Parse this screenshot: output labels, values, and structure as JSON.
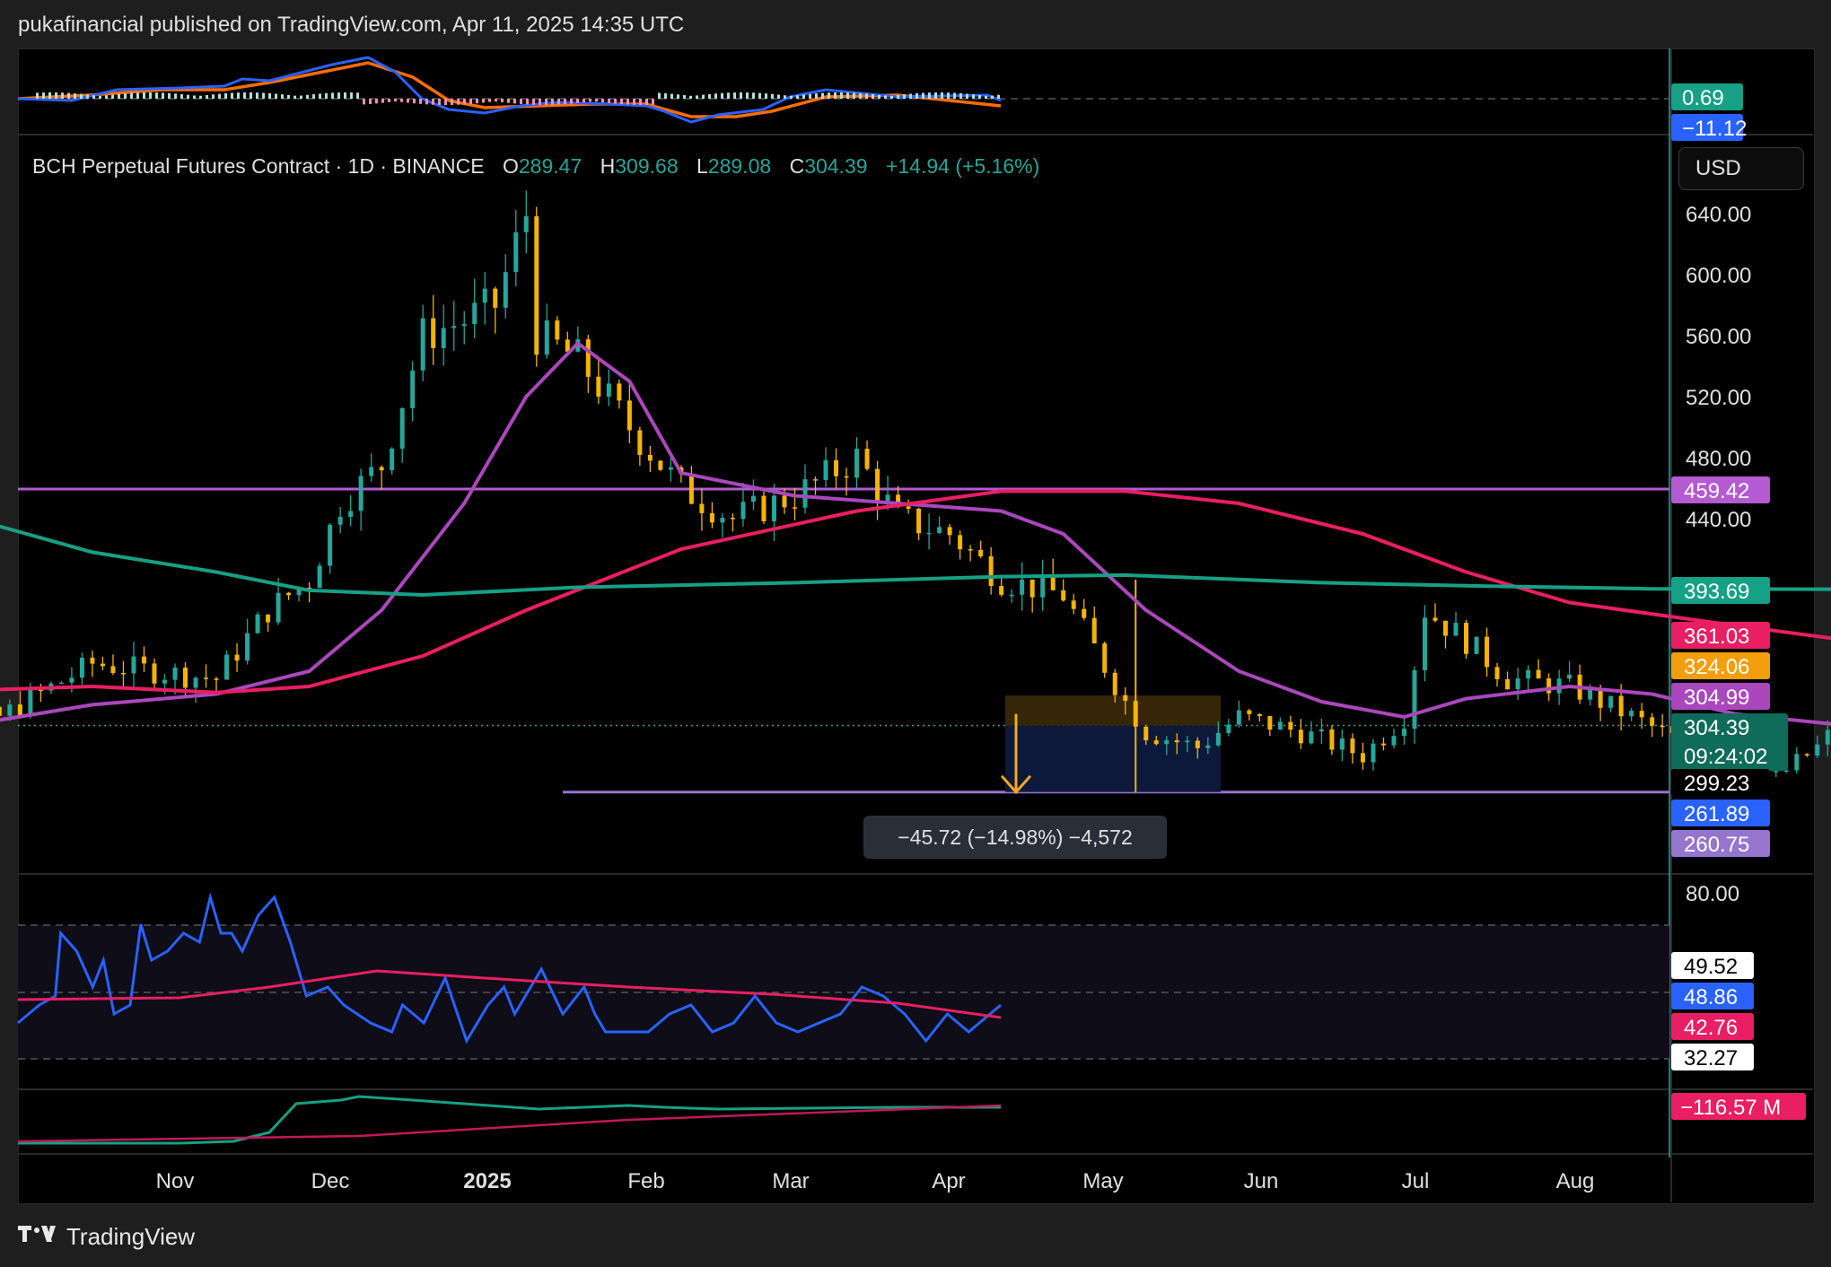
{
  "header": {
    "published": "pukafinancial published on TradingView.com, Apr 11, 2025 14:35 UTC"
  },
  "legend": {
    "symbol": "BCH Perpetual Futures Contract · 1D · BINANCE",
    "o_label": "O",
    "o": "289.47",
    "h_label": "H",
    "h": "309.68",
    "l_label": "L",
    "l": "289.08",
    "c_label": "C",
    "c": "304.39",
    "change": "+14.94 (+5.16%)"
  },
  "currency_button": "USD",
  "footer": {
    "brand": "TradingView",
    "logo": "tv-logo-icon"
  },
  "measure_tooltip": "−45.72 (−14.98%) −4,572",
  "colors": {
    "up": "#26a69a",
    "down": "#f5b400",
    "ma_fast": "#ab47bc",
    "ma_mid": "#e91e63",
    "ma_slow": "#16a085",
    "resistance": "#b45ad3",
    "support": "#9575cd",
    "rsi": "#2962ff",
    "rsi_ma": "#e91e63",
    "macd": "#2962ff",
    "signal": "#ff6d00"
  },
  "price_axis": {
    "ticks": [
      "640.00",
      "600.00",
      "560.00",
      "520.00",
      "480.00",
      "440.00"
    ],
    "badges": [
      {
        "value": "459.42",
        "color": "#b45ad3"
      },
      {
        "value": "393.69",
        "color": "#16a085"
      },
      {
        "value": "361.03",
        "color": "#e91e63"
      },
      {
        "value": "324.06",
        "color": "#f59e0b"
      },
      {
        "value": "304.99",
        "color": "#ab47bc"
      },
      {
        "value": "304.39",
        "color": "#0f6b5a"
      },
      {
        "value": "299.23",
        "color": "#000000"
      },
      {
        "value": "261.89",
        "color": "#2962ff"
      },
      {
        "value": "260.75",
        "color": "#9575cd"
      }
    ],
    "countdown": "09:24:02"
  },
  "macd_axis": {
    "badges": [
      {
        "value": "0.69",
        "color": "#16a085"
      },
      {
        "value": "−11.12",
        "color": "#2962ff"
      }
    ]
  },
  "rsi_axis": {
    "tick": "80.00",
    "badges": [
      {
        "value": "49.52",
        "color": "#ffffff"
      },
      {
        "value": "48.86",
        "color": "#2962ff"
      },
      {
        "value": "42.76",
        "color": "#e91e63"
      },
      {
        "value": "32.27",
        "color": "#ffffff"
      }
    ]
  },
  "obv_axis": {
    "badges": [
      {
        "value": "−116.57 M",
        "color": "#e91e63"
      }
    ]
  },
  "time_axis": [
    "Nov",
    "Dec",
    "2025",
    "Feb",
    "Mar",
    "Apr",
    "May",
    "Jun",
    "Jul",
    "Aug"
  ],
  "chart_data": {
    "type": "candlestick",
    "title": "BCH Perpetual Futures Contract · 1D · BINANCE",
    "ylim": [
      250,
      660
    ],
    "last": {
      "open": 289.47,
      "high": 309.68,
      "low": 289.08,
      "close": 304.39
    },
    "resistance": 459.42,
    "support": 260.75,
    "series": [
      {
        "points": [
          [
            "Oct 03",
            300
          ],
          [
            "Oct 15",
            310
          ],
          [
            "Oct 24",
            345
          ],
          [
            "Nov 05",
            335
          ],
          [
            "Nov 10",
            380
          ],
          [
            "Nov 14",
            400
          ],
          [
            "Nov 17",
            450
          ],
          [
            "Nov 21",
            475
          ],
          [
            "Nov 25",
            560
          ],
          [
            "Nov 29",
            570
          ],
          [
            "Dec 02",
            580
          ],
          [
            "Dec 05",
            640
          ],
          [
            "Dec 06",
            560
          ],
          [
            "Dec 10",
            545
          ],
          [
            "Dec 15",
            500
          ],
          [
            "Dec 20",
            460
          ],
          [
            "Dec 25",
            440
          ],
          [
            "Dec 31",
            455
          ],
          [
            "Jan 06",
            480
          ],
          [
            "Jan 10",
            440
          ],
          [
            "Jan 15",
            430
          ],
          [
            "Jan 20",
            400
          ],
          [
            "Jan 26",
            390
          ],
          [
            "Feb 01",
            320
          ],
          [
            "Feb 03",
            300
          ],
          [
            "Feb 08",
            290
          ],
          [
            "Feb 12",
            310
          ],
          [
            "Feb 18",
            300
          ],
          [
            "Feb 24",
            285
          ],
          [
            "Feb 28",
            310
          ],
          [
            "Mar 02",
            380
          ],
          [
            "Mar 06",
            360
          ],
          [
            "Mar 10",
            335
          ],
          [
            "Mar 16",
            330
          ],
          [
            "Mar 22",
            310
          ],
          [
            "Mar 28",
            290
          ],
          [
            "Apr 01",
            285
          ],
          [
            "Apr 05",
            270
          ],
          [
            "Apr 09",
            290
          ],
          [
            "Apr 11",
            304.39
          ]
        ]
      },
      {
        "name": "MA fast",
        "points": [
          [
            "Oct 03",
            300
          ],
          [
            "Oct 15",
            308
          ],
          [
            "Oct 24",
            318
          ],
          [
            "Nov 05",
            325
          ],
          [
            "Nov 14",
            340
          ],
          [
            "Nov 21",
            380
          ],
          [
            "Nov 29",
            450
          ],
          [
            "Dec 05",
            520
          ],
          [
            "Dec 10",
            555
          ],
          [
            "Dec 15",
            530
          ],
          [
            "Dec 20",
            470
          ],
          [
            "Dec 31",
            455
          ],
          [
            "Jan 10",
            450
          ],
          [
            "Jan 20",
            445
          ],
          [
            "Jan 26",
            430
          ],
          [
            "Feb 03",
            380
          ],
          [
            "Feb 12",
            340
          ],
          [
            "Feb 20",
            320
          ],
          [
            "Feb 28",
            310
          ],
          [
            "Mar 06",
            322
          ],
          [
            "Mar 16",
            330
          ],
          [
            "Mar 24",
            325
          ],
          [
            "Apr 01",
            312
          ],
          [
            "Apr 11",
            304.99
          ]
        ]
      },
      {
        "name": "MA mid",
        "points": [
          [
            "Oct 03",
            335
          ],
          [
            "Oct 15",
            328
          ],
          [
            "Oct 24",
            330
          ],
          [
            "Nov 05",
            326
          ],
          [
            "Nov 14",
            330
          ],
          [
            "Nov 25",
            350
          ],
          [
            "Dec 05",
            380
          ],
          [
            "Dec 20",
            420
          ],
          [
            "Jan 06",
            445
          ],
          [
            "Jan 20",
            458
          ],
          [
            "Feb 01",
            458
          ],
          [
            "Feb 12",
            450
          ],
          [
            "Feb 24",
            430
          ],
          [
            "Mar 06",
            405
          ],
          [
            "Mar 16",
            385
          ],
          [
            "Apr 01",
            370
          ],
          [
            "Apr 11",
            361.03
          ]
        ]
      },
      {
        "name": "MA slow",
        "points": [
          [
            "Oct 03",
            440
          ],
          [
            "Oct 15",
            435
          ],
          [
            "Oct 24",
            418
          ],
          [
            "Nov 05",
            405
          ],
          [
            "Nov 14",
            393
          ],
          [
            "Nov 25",
            390
          ],
          [
            "Dec 10",
            395
          ],
          [
            "Dec 31",
            398
          ],
          [
            "Jan 20",
            402
          ],
          [
            "Feb 01",
            403
          ],
          [
            "Feb 20",
            398
          ],
          [
            "Mar 06",
            396
          ],
          [
            "Mar 24",
            394
          ],
          [
            "Apr 11",
            393.69
          ]
        ]
      }
    ]
  }
}
